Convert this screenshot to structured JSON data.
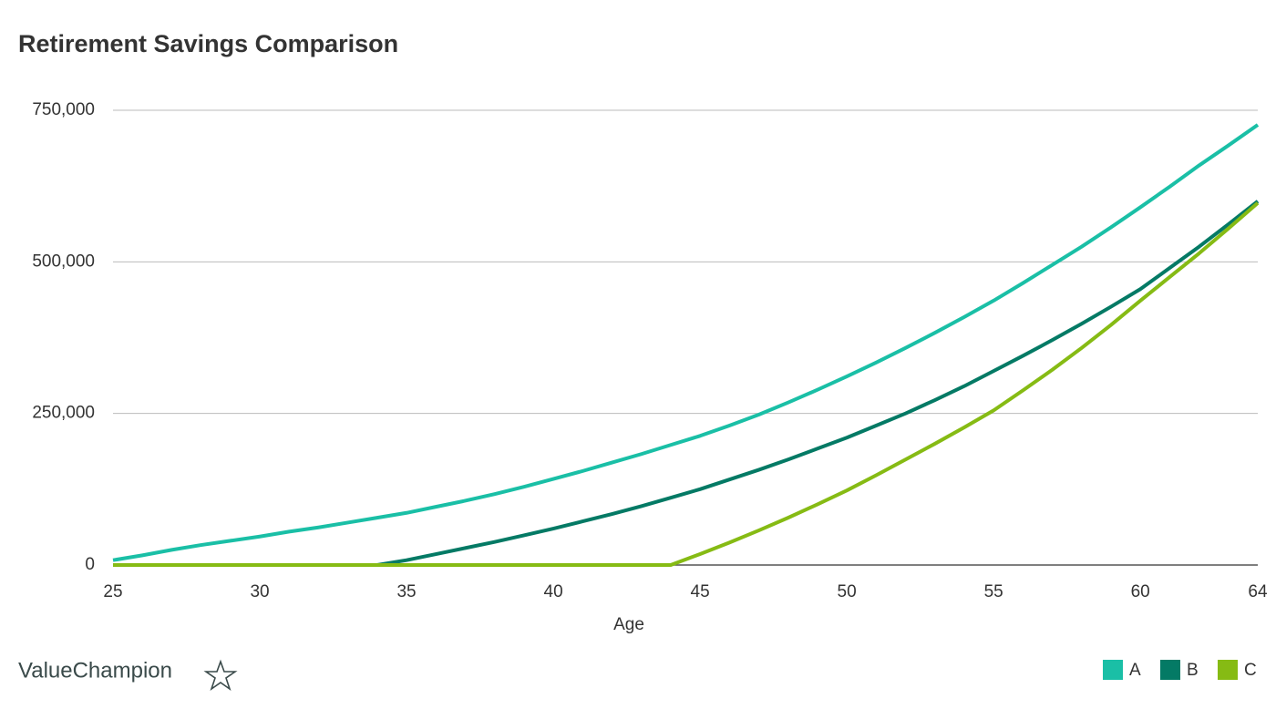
{
  "brand": "ValueChampion",
  "chart_data": {
    "type": "line",
    "title": "Retirement Savings Comparison",
    "x_label": "Age",
    "x": [
      25,
      26,
      27,
      28,
      29,
      30,
      31,
      32,
      33,
      34,
      35,
      36,
      37,
      38,
      39,
      40,
      41,
      42,
      43,
      44,
      45,
      46,
      47,
      48,
      49,
      50,
      51,
      52,
      53,
      54,
      55,
      56,
      57,
      58,
      59,
      60,
      61,
      62,
      63,
      64
    ],
    "xlim": [
      25,
      64
    ],
    "xticks": [
      25,
      30,
      35,
      40,
      45,
      50,
      55,
      60,
      64
    ],
    "ylim": [
      0,
      750000
    ],
    "yticks": [
      {
        "value": 0,
        "label": "0"
      },
      {
        "value": 250000,
        "label": "250,000"
      },
      {
        "value": 500000,
        "label": "500,000"
      },
      {
        "value": 750000,
        "label": "750,000"
      }
    ],
    "grid": true,
    "legend": "bottom-right",
    "series": [
      {
        "name": "A",
        "color": "#1abfa6",
        "values": [
          8000,
          16000,
          25000,
          33000,
          40000,
          47000,
          55000,
          62000,
          70000,
          78000,
          86000,
          96000,
          106000,
          117000,
          129000,
          142000,
          155000,
          169000,
          183000,
          198000,
          213000,
          230000,
          248000,
          268000,
          289000,
          311000,
          334000,
          358000,
          383000,
          409000,
          436000,
          465000,
          495000,
          525000,
          557000,
          590000,
          624000,
          659000,
          692000,
          726000
        ]
      },
      {
        "name": "B",
        "color": "#047a65",
        "values": [
          0,
          0,
          0,
          0,
          0,
          0,
          0,
          0,
          0,
          0,
          8000,
          18000,
          28000,
          38000,
          49000,
          60000,
          72000,
          84000,
          97000,
          111000,
          125000,
          141000,
          157000,
          174000,
          192000,
          210000,
          230000,
          250000,
          272000,
          295000,
          320000,
          345000,
          371000,
          398000,
          426000,
          455000,
          490000,
          525000,
          562000,
          600000
        ]
      },
      {
        "name": "C",
        "color": "#86bb14",
        "values": [
          0,
          0,
          0,
          0,
          0,
          0,
          0,
          0,
          0,
          0,
          0,
          0,
          0,
          0,
          0,
          0,
          0,
          0,
          0,
          0,
          18000,
          37000,
          57000,
          78000,
          100000,
          123000,
          148000,
          174000,
          200000,
          227000,
          255000,
          288000,
          322000,
          358000,
          396000,
          436000,
          475000,
          514000,
          555000,
          597000
        ]
      }
    ]
  }
}
